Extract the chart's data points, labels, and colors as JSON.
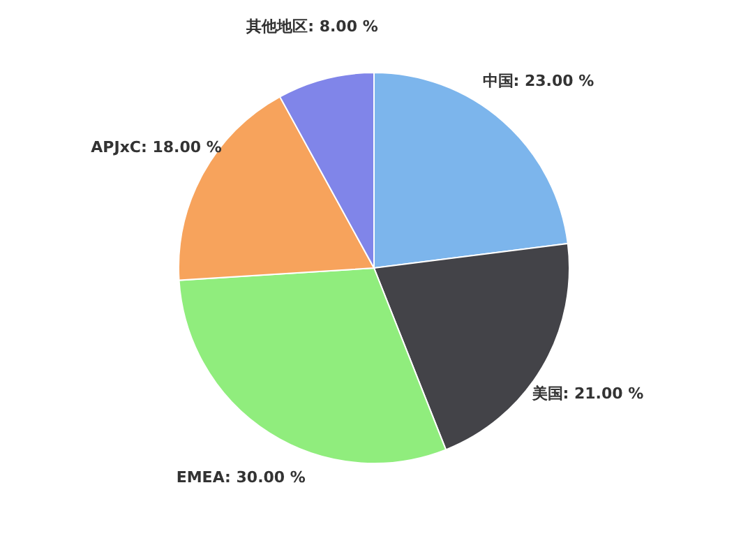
{
  "chart_data": {
    "type": "pie",
    "categories": [
      "中国",
      "美国",
      "EMEA",
      "APJxC",
      "其他地区"
    ],
    "values": [
      23,
      21,
      30,
      18,
      8
    ],
    "value_labels": [
      "23.00 %",
      "21.00 %",
      "30.00 %",
      "18.00 %",
      "8.00 %"
    ],
    "colors": [
      "#7cb5ec",
      "#434348",
      "#90ed7d",
      "#f7a35c",
      "#8085e9"
    ]
  }
}
